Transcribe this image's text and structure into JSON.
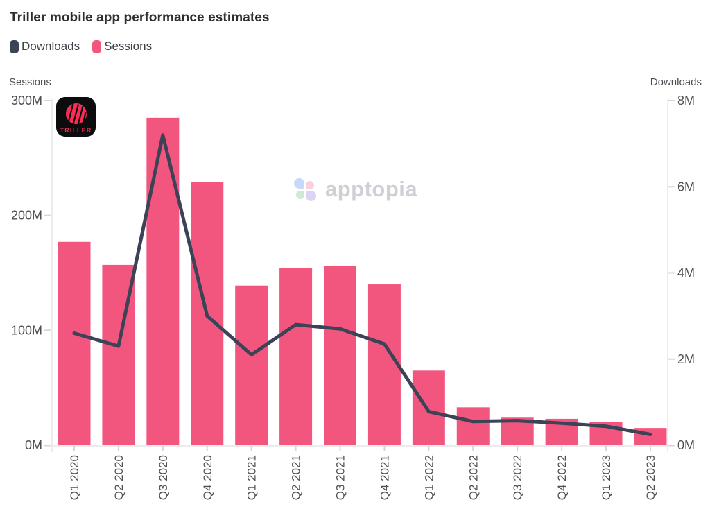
{
  "watermark": {
    "text": "apptopia"
  },
  "triller_logo": {
    "text": "TRILLER",
    "bg_color": "#0c0c0f",
    "accent_color": "#fb2c55"
  },
  "apptopia_logo_colors": {
    "top_left": "#bed6f6",
    "top_right": "#f8cbdc",
    "bottom_left": "#c6e9d2",
    "bottom_right": "#dacff5"
  },
  "chart_data": {
    "type": "bar",
    "title": "Triller mobile app performance estimates",
    "categories": [
      "Q1 2020",
      "Q2 2020",
      "Q3 2020",
      "Q4 2020",
      "Q1 2021",
      "Q2 2021",
      "Q3 2021",
      "Q4 2021",
      "Q1 2022",
      "Q2 2022",
      "Q3 2022",
      "Q4 2022",
      "Q1 2023",
      "Q2 2023"
    ],
    "series": [
      {
        "name": "Downloads",
        "type": "line",
        "axis": "right",
        "color": "#3c4357",
        "unit": "M",
        "values": [
          2.6,
          2.3,
          7.2,
          3.0,
          2.1,
          2.8,
          2.7,
          2.35,
          0.78,
          0.55,
          0.57,
          0.51,
          0.44,
          0.25
        ]
      },
      {
        "name": "Sessions",
        "type": "bar",
        "axis": "left",
        "color": "#f2567f",
        "unit": "M",
        "values": [
          177,
          157,
          285,
          229,
          139,
          154,
          156,
          140,
          65,
          33,
          24,
          23,
          20,
          15
        ]
      }
    ],
    "left_axis": {
      "label": "Sessions",
      "ylim": [
        0,
        300
      ],
      "tick_values": [
        0,
        100,
        200,
        300
      ],
      "ticks": [
        "0M",
        "100M",
        "200M",
        "300M"
      ]
    },
    "right_axis": {
      "label": "Downloads",
      "ylim": [
        0,
        8
      ],
      "tick_values": [
        0,
        2,
        4,
        6,
        8
      ],
      "ticks": [
        "0M",
        "2M",
        "4M",
        "6M",
        "8M"
      ]
    },
    "grid": false,
    "legend_position": "top-left",
    "x_tick_rotation": -90
  }
}
